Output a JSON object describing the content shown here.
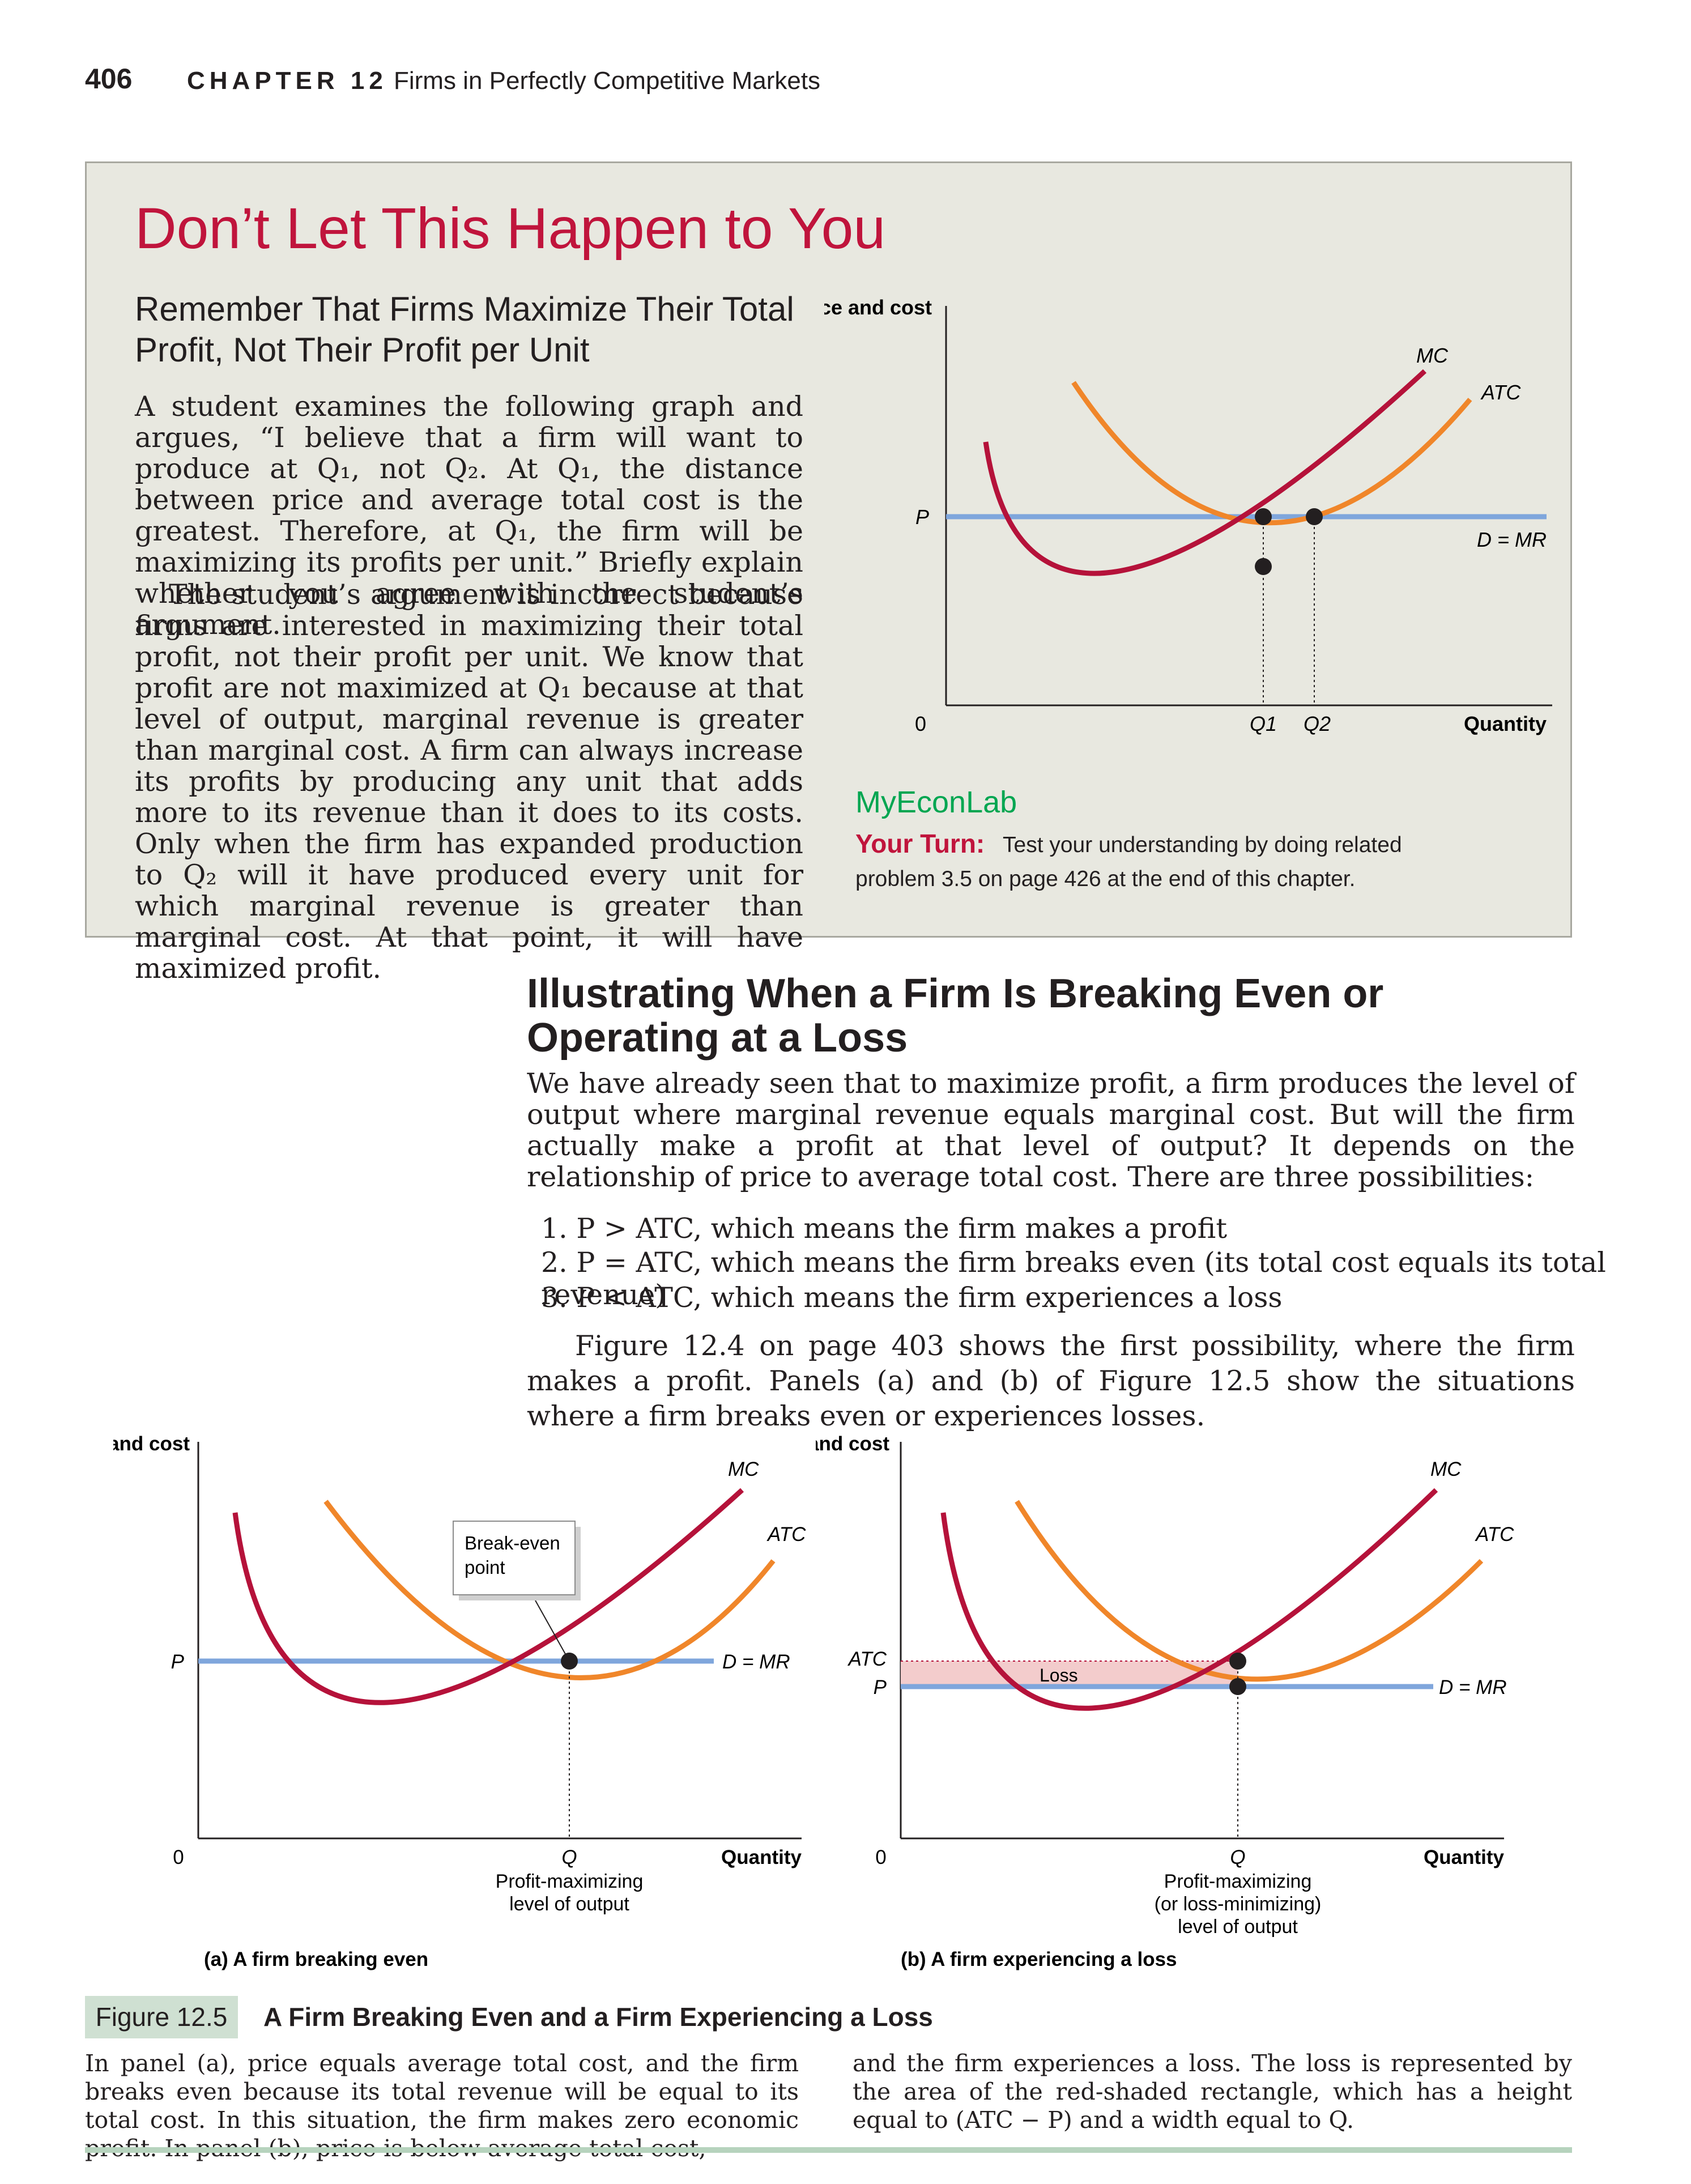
{
  "header": {
    "page_number": "406",
    "chapter_label": "CHAPTER 12",
    "chapter_title": "Firms in Perfectly Competitive Markets"
  },
  "callout": {
    "heading": "Don’t Let This Happen to You",
    "subheading": "Remember That Firms Maximize Their Total Profit, Not Their Profit per Unit",
    "para1": "A student examines the following graph and argues, “I believe that a firm will want to produce at Q₁, not Q₂. At Q₁, the distance between price and average total cost is the greatest. Therefore, at Q₁, the firm will be maximizing its profits per unit.” Briefly explain whether you agree with the student’s argument.",
    "para2": "The student’s argument is incorrect because firms are interested in maximizing their total profit, not their profit per unit. We know that profit are not maximized at Q₁ because at that level of output, marginal revenue is greater than marginal cost. A firm can always increase its profits by producing any unit that adds more to its revenue than it does to its costs. Only when the firm has expanded production to Q₂ will it have produced every unit for which marginal revenue is greater than marginal cost. At that point, it will have maximized profit.",
    "myeconlab": "MyEconLab",
    "your_turn_label": "Your Turn:",
    "your_turn_text1": "Test your understanding by doing related",
    "your_turn_text2": "problem 3.5 on page 426 at the end of this chapter."
  },
  "section": {
    "heading": "Illustrating When a Firm Is Breaking Even or Operating at a Loss",
    "intro": "We have already seen that to maximize profit, a firm produces the level of output where marginal revenue equals marginal cost. But will the firm actually make a profit at that level of output? It depends on the relationship of price to average total cost. There are three possibilities:",
    "list": [
      "1. P > ATC, which means the firm makes a profit",
      "2. P = ATC, which means the firm breaks even (its total cost equals its total revenue)",
      "3. P < ATC, which means the firm experiences a loss"
    ],
    "figure_ref": "Figure 12.4 on page 403 shows the first possibility, where the firm makes a profit. Panels (a) and (b) of Figure 12.5 show the situations where a firm breaks even or experiences losses."
  },
  "figure": {
    "label": "Figure 12.5",
    "title": "A Firm Breaking Even and a Firm Experiencing a Loss",
    "caption_left": "In panel (a), price equals average total cost, and the firm breaks even because its total revenue will be equal to its total cost. In this situation, the firm makes zero economic profit. In panel (b), price is below average total cost,",
    "caption_right": "and the firm experiences a loss. The loss is represented by the area of the red-shaded rectangle, which has a height equal to (ATC − P) and a width equal to Q."
  },
  "chart_data": [
    {
      "type": "line",
      "ylabel": "Price and cost",
      "xlabel": "Quantity",
      "origin_label": "0",
      "series": [
        {
          "name": "MC",
          "color": "#b5123a"
        },
        {
          "name": "ATC",
          "color": "#f0862a"
        },
        {
          "name": "D = MR",
          "color": "#7fa6dc"
        }
      ],
      "y_tick": "P",
      "x_ticks": [
        "Q1",
        "Q2"
      ]
    },
    {
      "type": "line",
      "panel": "(a) A firm breaking even",
      "ylabel": "Price and cost",
      "xlabel": "Quantity",
      "origin_label": "0",
      "series": [
        {
          "name": "MC",
          "color": "#b5123a"
        },
        {
          "name": "ATC",
          "color": "#f0862a"
        },
        {
          "name": "D = MR",
          "color": "#7fa6dc"
        }
      ],
      "y_tick": "P",
      "x_tick": "Q",
      "x_tick_note": [
        "Profit-maximizing",
        "level of output"
      ],
      "annotation": [
        "Break-even",
        "point"
      ]
    },
    {
      "type": "line",
      "panel": "(b) A firm experiencing a loss",
      "ylabel": "Price and cost",
      "xlabel": "Quantity",
      "origin_label": "0",
      "series": [
        {
          "name": "MC",
          "color": "#b5123a"
        },
        {
          "name": "ATC",
          "color": "#f0862a"
        },
        {
          "name": "D = MR",
          "color": "#7fa6dc"
        }
      ],
      "y_ticks": [
        "ATC",
        "P"
      ],
      "x_tick": "Q",
      "x_tick_note": [
        "Profit-maximizing",
        "(or loss-minimizing)",
        "level of output"
      ],
      "loss_label": "Loss"
    }
  ]
}
